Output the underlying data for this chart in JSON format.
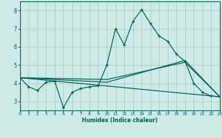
{
  "xlabel": "Humidex (Indice chaleur)",
  "bg_color": "#ceeae6",
  "grid_color": "#b0d0cc",
  "line_color": "#006055",
  "xlim": [
    0,
    23
  ],
  "ylim": [
    2.5,
    8.5
  ],
  "xticks": [
    0,
    1,
    2,
    3,
    4,
    5,
    6,
    7,
    8,
    9,
    10,
    11,
    12,
    13,
    14,
    15,
    16,
    17,
    18,
    19,
    20,
    21,
    22,
    23
  ],
  "yticks": [
    3,
    4,
    5,
    6,
    7,
    8
  ],
  "series1_x": [
    0,
    1,
    2,
    3,
    4,
    5,
    6,
    7,
    8,
    9,
    10,
    11,
    12,
    13,
    14,
    15,
    16,
    17,
    18,
    19,
    20,
    21,
    22,
    23
  ],
  "series1_y": [
    4.3,
    3.8,
    3.6,
    4.05,
    4.1,
    2.65,
    3.5,
    3.7,
    3.8,
    3.85,
    5.0,
    7.0,
    6.1,
    7.4,
    8.05,
    7.3,
    6.6,
    6.3,
    5.6,
    5.2,
    4.0,
    3.5,
    3.3,
    3.25
  ],
  "series2_x": [
    0,
    23
  ],
  "series2_y": [
    4.3,
    3.25
  ],
  "series3_x": [
    0,
    10,
    19,
    23
  ],
  "series3_y": [
    4.3,
    4.05,
    5.25,
    3.25
  ],
  "series4_x": [
    0,
    10,
    19,
    23
  ],
  "series4_y": [
    4.3,
    4.2,
    5.15,
    3.25
  ]
}
